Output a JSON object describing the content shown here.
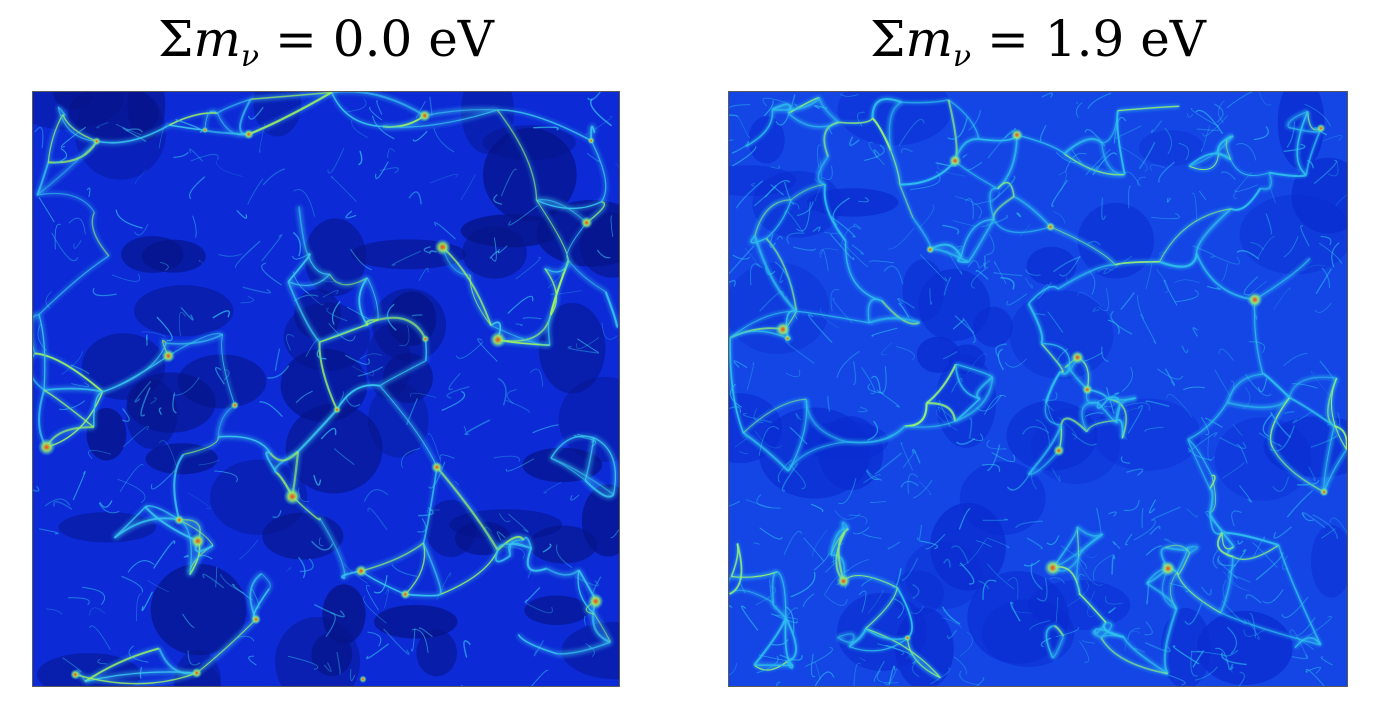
{
  "panels": [
    {
      "title": {
        "symbol": "Σ",
        "variable": "m",
        "subscript": "ν",
        "equals": " = ",
        "value": "0.0 eV"
      },
      "colors": {
        "void": "#061488",
        "background": "#0c2ad6",
        "filament": "#38c8f0",
        "bright_filament": "#a0f060",
        "node": "#ff3a12"
      }
    },
    {
      "title": {
        "symbol": "Σ",
        "variable": "m",
        "subscript": "ν",
        "equals": " = ",
        "value": "1.9 eV"
      },
      "colors": {
        "void": "#0a2cd0",
        "background": "#1446e6",
        "filament": "#2ec0ee",
        "bright_filament": "#9cf070",
        "node": "#ff3a12"
      }
    }
  ]
}
